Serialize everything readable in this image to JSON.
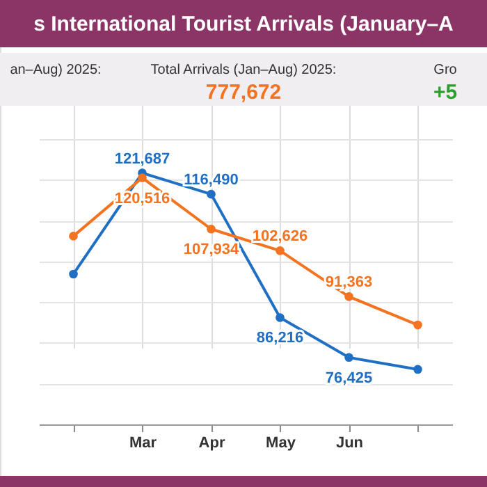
{
  "chart_data": {
    "type": "line",
    "title": "s International Tourist Arrivals (January–A",
    "annotations": [
      "an–Aug) 2025:",
      "Total Arrivals (Jan–Aug) 2025:",
      "777,672",
      "Gro",
      "+5"
    ],
    "categories": [
      null,
      "Mar",
      "Apr",
      "May",
      "Jun",
      null
    ],
    "series": [
      {
        "color": "#1f6fc5",
        "values": [
          96880,
          121687,
          116490,
          86216,
          76425,
          73500
        ],
        "value_labels": [
          null,
          "121,687",
          "116,490",
          "86,216",
          "76,425",
          null
        ]
      },
      {
        "color": "#f47321",
        "values": [
          106200,
          120516,
          107934,
          102626,
          91363,
          84400
        ],
        "value_labels": [
          null,
          "120,516",
          "107,934",
          "102,626",
          "91,363",
          null
        ]
      }
    ],
    "ylim": [
      60000,
      130000
    ],
    "yticks": [
      {
        "value": 70000,
        "label": null
      },
      {
        "value": 80000,
        "label": null
      },
      {
        "value": 90000,
        "label": null
      },
      {
        "value": 100000,
        "label": null
      },
      {
        "value": 110000,
        "label": null
      },
      {
        "value": 120000,
        "label": null
      },
      {
        "value": 130000,
        "label": null
      }
    ],
    "tick_labels": "x",
    "grid": true,
    "marker": "circle",
    "line_style": "solid"
  }
}
